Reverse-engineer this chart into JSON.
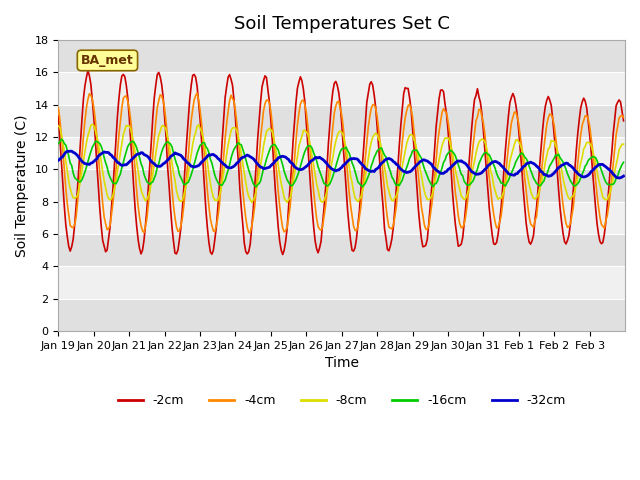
{
  "title": "Soil Temperatures Set C",
  "xlabel": "Time",
  "ylabel": "Soil Temperature (C)",
  "ylim": [
    0,
    18
  ],
  "yticks": [
    0,
    2,
    4,
    6,
    8,
    10,
    12,
    14,
    16,
    18
  ],
  "xtick_labels": [
    "Jan 19",
    "Jan 20",
    "Jan 21",
    "Jan 22",
    "Jan 23",
    "Jan 24",
    "Jan 25",
    "Jan 26",
    "Jan 27",
    "Jan 28",
    "Jan 29",
    "Jan 30",
    "Jan 31",
    "Feb 1",
    "Feb 2",
    "Feb 3"
  ],
  "legend_labels": [
    "-2cm",
    "-4cm",
    "-8cm",
    "-16cm",
    "-32cm"
  ],
  "legend_colors": [
    "#cc0000",
    "#ff8800",
    "#dddd00",
    "#00cc00",
    "#0000cc"
  ],
  "line_widths": [
    1.2,
    1.2,
    1.2,
    1.2,
    2.0
  ],
  "annotation_text": "BA_met",
  "annotation_box_color": "#ffff99",
  "annotation_box_edge": "#886600",
  "plot_bg_color_dark": "#e0e0e0",
  "plot_bg_color_light": "#f0f0f0",
  "title_fontsize": 13,
  "axis_label_fontsize": 10,
  "tick_fontsize": 8
}
